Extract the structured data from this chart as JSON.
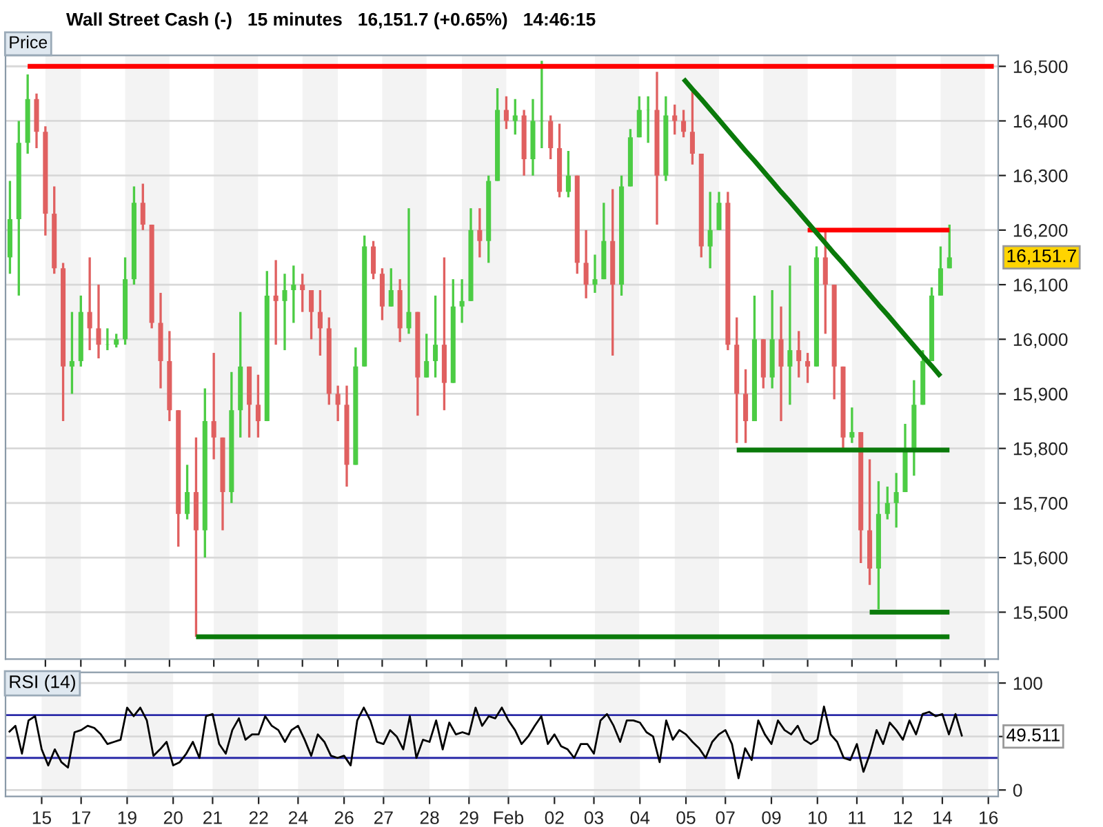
{
  "chart_data": [
    {
      "type": "candlestick",
      "title": "Wall Street Cash (-)   15 minutes   16,151.7 (+0.65%)   14:46:15",
      "subtitle": "Price",
      "annotations": [
        "16,151.7"
      ],
      "categories": [
        null,
        null,
        null,
        null,
        "15",
        null,
        null,
        null,
        "17",
        null,
        null,
        null,
        null,
        "19",
        null,
        null,
        null,
        null,
        "20",
        null,
        null,
        null,
        null,
        "21",
        null,
        null,
        null,
        null,
        "22",
        null,
        null,
        null,
        null,
        "24",
        null,
        null,
        null,
        "26",
        null,
        null,
        null,
        null,
        "27",
        null,
        null,
        null,
        null,
        "28",
        null,
        null,
        null,
        "29",
        null,
        null,
        null,
        null,
        "Feb",
        null,
        null,
        null,
        null,
        "02",
        null,
        null,
        null,
        null,
        "03",
        null,
        null,
        null,
        null,
        "04",
        null,
        null,
        null,
        "05",
        null,
        null,
        null,
        null,
        "07",
        null,
        null,
        null,
        null,
        "09",
        null,
        null,
        null,
        null,
        "10",
        null,
        null,
        null,
        null,
        "11",
        null,
        null,
        null,
        null,
        "12",
        null,
        null,
        null,
        null,
        "14",
        null,
        null,
        null,
        null,
        "16",
        null
      ],
      "ohlc": [
        [
          16150,
          16290,
          16120,
          16220
        ],
        [
          16220,
          16400,
          16080,
          16360
        ],
        [
          16360,
          16485,
          16340,
          16440
        ],
        [
          16440,
          16450,
          16350,
          16380
        ],
        [
          16380,
          16390,
          16190,
          16230
        ],
        [
          16230,
          16280,
          16120,
          16130
        ],
        [
          16130,
          16140,
          15850,
          15950
        ],
        [
          15950,
          16050,
          15900,
          15960
        ],
        [
          15960,
          16080,
          15950,
          16050
        ],
        [
          16050,
          16150,
          15980,
          16020
        ],
        [
          16020,
          16100,
          15965,
          15990
        ],
        [
          15990,
          16020,
          15980,
          15990
        ],
        [
          15990,
          16010,
          15985,
          16000
        ],
        [
          16000,
          16150,
          15990,
          16110
        ],
        [
          16110,
          16280,
          16100,
          16250
        ],
        [
          16250,
          16285,
          16200,
          16210
        ],
        [
          16210,
          16210,
          16020,
          16030
        ],
        [
          16030,
          16085,
          15910,
          15960
        ],
        [
          15960,
          16015,
          15850,
          15870
        ],
        [
          15870,
          15870,
          15620,
          15680
        ],
        [
          15680,
          15770,
          15670,
          15720
        ],
        [
          15720,
          15820,
          15455,
          15650
        ],
        [
          15650,
          15910,
          15600,
          15850
        ],
        [
          15850,
          15975,
          15780,
          15820
        ],
        [
          15820,
          15820,
          15650,
          15720
        ],
        [
          15720,
          15940,
          15700,
          15870
        ],
        [
          15870,
          16050,
          15820,
          15950
        ],
        [
          15950,
          15950,
          15820,
          15880
        ],
        [
          15880,
          15935,
          15820,
          15850
        ],
        [
          15850,
          16125,
          15850,
          16080
        ],
        [
          16080,
          16145,
          15990,
          16070
        ],
        [
          16070,
          16120,
          15980,
          16090
        ],
        [
          16090,
          16135,
          16030,
          16100
        ],
        [
          16100,
          16120,
          16050,
          16090
        ],
        [
          16090,
          16090,
          16000,
          16050
        ],
        [
          16050,
          16090,
          15970,
          16020
        ],
        [
          16020,
          16040,
          15880,
          15900
        ],
        [
          15900,
          15915,
          15850,
          15880
        ],
        [
          15880,
          15915,
          15730,
          15770
        ],
        [
          15770,
          15985,
          15770,
          15950
        ],
        [
          15950,
          16190,
          15950,
          16170
        ],
        [
          16170,
          16180,
          16110,
          16120
        ],
        [
          16120,
          16130,
          16035,
          16060
        ],
        [
          16060,
          16130,
          16060,
          16090
        ],
        [
          16090,
          16110,
          15995,
          16020
        ],
        [
          16020,
          16240,
          16010,
          16050
        ],
        [
          16050,
          16050,
          15860,
          15930
        ],
        [
          15930,
          16010,
          15930,
          15960
        ],
        [
          15960,
          16080,
          15930,
          15990
        ],
        [
          15990,
          16150,
          15870,
          15920
        ],
        [
          15920,
          16110,
          15920,
          16060
        ],
        [
          16060,
          16110,
          16030,
          16070
        ],
        [
          16070,
          16240,
          16070,
          16200
        ],
        [
          16200,
          16240,
          16150,
          16180
        ],
        [
          16180,
          16300,
          16140,
          16290
        ],
        [
          16290,
          16460,
          16290,
          16420
        ],
        [
          16420,
          16445,
          16385,
          16400
        ],
        [
          16400,
          16440,
          16375,
          16410
        ],
        [
          16410,
          16420,
          16300,
          16330
        ],
        [
          16330,
          16440,
          16300,
          16400
        ],
        [
          16400,
          16510,
          16350,
          16400
        ],
        [
          16400,
          16410,
          16330,
          16350
        ],
        [
          16350,
          16395,
          16260,
          16270
        ],
        [
          16270,
          16345,
          16260,
          16300
        ],
        [
          16300,
          16300,
          16120,
          16140
        ],
        [
          16140,
          16200,
          16075,
          16100
        ],
        [
          16100,
          16155,
          16085,
          16110
        ],
        [
          16110,
          16250,
          16110,
          16180
        ],
        [
          16180,
          16275,
          15970,
          16100
        ],
        [
          16100,
          16300,
          16080,
          16280
        ],
        [
          16280,
          16385,
          16280,
          16370
        ],
        [
          16370,
          16445,
          16370,
          16420
        ],
        [
          16420,
          16445,
          16360,
          16420
        ],
        [
          16420,
          16490,
          16210,
          16300
        ],
        [
          16300,
          16445,
          16290,
          16410
        ],
        [
          16410,
          16430,
          16375,
          16400
        ],
        [
          16400,
          16420,
          16370,
          16380
        ],
        [
          16380,
          16460,
          16320,
          16340
        ],
        [
          16340,
          16340,
          16150,
          16170
        ],
        [
          16170,
          16270,
          16130,
          16200
        ],
        [
          16200,
          16270,
          16200,
          16250
        ],
        [
          16250,
          16270,
          15980,
          15990
        ],
        [
          15990,
          16040,
          15810,
          15900
        ],
        [
          15900,
          15945,
          15810,
          15850
        ],
        [
          15850,
          16080,
          15850,
          16000
        ],
        [
          16000,
          16000,
          15910,
          15930
        ],
        [
          15930,
          16090,
          15910,
          16000
        ],
        [
          16000,
          16060,
          15850,
          15950
        ],
        [
          15950,
          16135,
          15880,
          15980
        ],
        [
          15980,
          16015,
          15930,
          15960
        ],
        [
          15960,
          15975,
          15920,
          15950
        ],
        [
          15950,
          16170,
          15950,
          16150
        ],
        [
          16150,
          16200,
          16010,
          16100
        ],
        [
          16100,
          16100,
          15890,
          15950
        ],
        [
          15950,
          15950,
          15800,
          15820
        ],
        [
          15820,
          15875,
          15810,
          15830
        ],
        [
          15830,
          15830,
          15590,
          15650
        ],
        [
          15650,
          15780,
          15550,
          15580
        ],
        [
          15580,
          15740,
          15505,
          15680
        ],
        [
          15680,
          15730,
          15670,
          15700
        ],
        [
          15700,
          15755,
          15655,
          15720
        ],
        [
          15720,
          15845,
          15720,
          15800
        ],
        [
          15800,
          15925,
          15750,
          15880
        ],
        [
          15880,
          15980,
          15880,
          15960
        ],
        [
          15960,
          16095,
          15960,
          16080
        ],
        [
          16080,
          16170,
          16080,
          16130
        ],
        [
          16130,
          16210,
          16130,
          16150
        ],
        null,
        null,
        null,
        null,
        null
      ],
      "colors": [
        "#4ccc44",
        "#4ccc44",
        "#4ccc44",
        "#e06060",
        "#e06060",
        "#e06060",
        "#e06060",
        "#4ccc44",
        "#4ccc44",
        "#e06060",
        "#e06060",
        "#4ccc44",
        "#4ccc44",
        "#4ccc44",
        "#4ccc44",
        "#e06060",
        "#e06060",
        "#e06060",
        "#e06060",
        "#e06060",
        "#4ccc44",
        "#e06060",
        "#4ccc44",
        "#e06060",
        "#e06060",
        "#4ccc44",
        "#4ccc44",
        "#e06060",
        "#e06060",
        "#4ccc44",
        "#e06060",
        "#4ccc44",
        "#4ccc44",
        "#e06060",
        "#e06060",
        "#e06060",
        "#e06060",
        "#e06060",
        "#e06060",
        "#4ccc44",
        "#4ccc44",
        "#e06060",
        "#e06060",
        "#4ccc44",
        "#e06060",
        "#4ccc44",
        "#e06060",
        "#4ccc44",
        "#4ccc44",
        "#e06060",
        "#4ccc44",
        "#4ccc44",
        "#4ccc44",
        "#e06060",
        "#4ccc44",
        "#4ccc44",
        "#e06060",
        "#4ccc44",
        "#e06060",
        "#4ccc44",
        "#4ccc44",
        "#e06060",
        "#e06060",
        "#4ccc44",
        "#e06060",
        "#e06060",
        "#4ccc44",
        "#4ccc44",
        "#e06060",
        "#4ccc44",
        "#4ccc44",
        "#4ccc44",
        "#4ccc44",
        "#e06060",
        "#4ccc44",
        "#e06060",
        "#e06060",
        "#e06060",
        "#e06060",
        "#4ccc44",
        "#4ccc44",
        "#e06060",
        "#e06060",
        "#e06060",
        "#4ccc44",
        "#e06060",
        "#4ccc44",
        "#e06060",
        "#4ccc44",
        "#e06060",
        "#e06060",
        "#4ccc44",
        "#e06060",
        "#e06060",
        "#e06060",
        "#4ccc44",
        "#e06060",
        "#e06060",
        "#4ccc44",
        "#4ccc44",
        "#4ccc44",
        "#4ccc44",
        "#4ccc44",
        "#4ccc44",
        "#4ccc44",
        "#4ccc44",
        "#4ccc44",
        null,
        null,
        null,
        null,
        null
      ],
      "series": [
        {
          "type": "line",
          "color": "#ff0000",
          "values": [
            null,
            null,
            16500,
            16500,
            16500,
            16500,
            16500,
            16500,
            16500,
            16500,
            16500,
            16500,
            16500,
            16500,
            16500,
            16500,
            16500,
            16500,
            16500,
            16500,
            16500,
            16500,
            16500,
            16500,
            16500,
            16500,
            16500,
            16500,
            16500,
            16500,
            16500,
            16500,
            16500,
            16500,
            16500,
            16500,
            16500,
            16500,
            16500,
            16500,
            16500,
            16500,
            16500,
            16500,
            16500,
            16500,
            16500,
            16500,
            16500,
            16500,
            16500,
            16500,
            16500,
            16500,
            16500,
            16500,
            16500,
            16500,
            16500,
            16500,
            16500,
            16500,
            16500,
            16500,
            16500,
            16500,
            16500,
            16500,
            16500,
            16500,
            16500,
            16500,
            16500,
            16500,
            16500,
            16500,
            16500,
            16500,
            16500,
            16500,
            16500,
            16500,
            16500,
            16500,
            16500,
            16500,
            16500,
            16500,
            16500,
            16500,
            16500,
            16500,
            16500,
            16500,
            16500,
            16500,
            16500,
            16500,
            16500,
            16500,
            16500,
            16500,
            16500,
            16500,
            16500,
            16500,
            16500,
            16500,
            16500,
            16500,
            16500,
            16500
          ]
        },
        {
          "type": "line",
          "color": "#ff0000",
          "values": [
            null,
            null,
            null,
            null,
            null,
            null,
            null,
            null,
            null,
            null,
            null,
            null,
            null,
            null,
            null,
            null,
            null,
            null,
            null,
            null,
            null,
            null,
            null,
            null,
            null,
            null,
            null,
            null,
            null,
            null,
            null,
            null,
            null,
            null,
            null,
            null,
            null,
            null,
            null,
            null,
            null,
            null,
            null,
            null,
            null,
            null,
            null,
            null,
            null,
            null,
            null,
            null,
            null,
            null,
            null,
            null,
            null,
            null,
            null,
            null,
            null,
            null,
            null,
            null,
            null,
            null,
            null,
            null,
            null,
            null,
            null,
            null,
            null,
            null,
            null,
            null,
            null,
            null,
            null,
            null,
            null,
            null,
            null,
            null,
            null,
            null,
            null,
            null,
            null,
            null,
            16200,
            16200,
            16200,
            16200,
            16200,
            16200,
            16200,
            16200,
            16200,
            16200,
            16200,
            16200,
            16200,
            16200,
            16200,
            16200,
            16200,
            null,
            null,
            null,
            null,
            null
          ]
        },
        {
          "type": "line",
          "color": "#0a7a0a",
          "values": [
            null,
            null,
            null,
            null,
            null,
            null,
            null,
            null,
            null,
            null,
            null,
            null,
            null,
            null,
            null,
            null,
            null,
            null,
            null,
            null,
            null,
            null,
            null,
            null,
            null,
            null,
            null,
            null,
            null,
            null,
            null,
            null,
            null,
            null,
            null,
            null,
            null,
            null,
            null,
            null,
            null,
            null,
            null,
            null,
            null,
            null,
            null,
            null,
            null,
            null,
            null,
            null,
            null,
            null,
            null,
            null,
            null,
            null,
            null,
            null,
            null,
            null,
            null,
            null,
            null,
            null,
            null,
            null,
            null,
            null,
            null,
            null,
            null,
            null,
            null,
            null,
            16477,
            16458,
            16440,
            16421,
            16402,
            16383,
            16364,
            16345,
            16327,
            16308,
            16289,
            16270,
            16252,
            16233,
            16214,
            16195,
            16176,
            16157,
            16139,
            16120,
            16101,
            16082,
            16063,
            16045,
            16026,
            16007,
            15988,
            15969,
            15951,
            15932,
            null,
            null,
            null,
            null,
            null,
            null
          ]
        },
        {
          "type": "line",
          "color": "#0a7a0a",
          "values": [
            null,
            null,
            null,
            null,
            null,
            null,
            null,
            null,
            null,
            null,
            null,
            null,
            null,
            null,
            null,
            null,
            null,
            null,
            null,
            null,
            null,
            null,
            null,
            null,
            null,
            null,
            null,
            null,
            null,
            null,
            null,
            null,
            null,
            null,
            null,
            null,
            null,
            null,
            null,
            null,
            null,
            null,
            null,
            null,
            null,
            null,
            null,
            null,
            null,
            null,
            null,
            null,
            null,
            null,
            null,
            null,
            null,
            null,
            null,
            null,
            null,
            null,
            null,
            null,
            null,
            null,
            null,
            null,
            null,
            null,
            null,
            null,
            null,
            null,
            null,
            null,
            null,
            null,
            null,
            null,
            null,
            null,
            15797,
            15797,
            15797,
            15797,
            15797,
            15797,
            15797,
            15797,
            15797,
            15797,
            15797,
            15797,
            15797,
            15797,
            15797,
            15797,
            15797,
            15797,
            15797,
            15797,
            15797,
            15797,
            15797,
            15797,
            15797,
            null,
            null,
            null,
            null,
            null
          ]
        },
        {
          "type": "line",
          "color": "#0a7a0a",
          "values": [
            null,
            null,
            null,
            null,
            null,
            null,
            null,
            null,
            null,
            null,
            null,
            null,
            null,
            null,
            null,
            null,
            null,
            null,
            null,
            null,
            null,
            null,
            null,
            null,
            null,
            null,
            null,
            null,
            null,
            null,
            null,
            null,
            null,
            null,
            null,
            null,
            null,
            null,
            null,
            null,
            null,
            null,
            null,
            null,
            null,
            null,
            null,
            null,
            null,
            null,
            null,
            null,
            null,
            null,
            null,
            null,
            null,
            null,
            null,
            null,
            null,
            null,
            null,
            null,
            null,
            null,
            null,
            null,
            null,
            null,
            null,
            null,
            null,
            null,
            null,
            null,
            null,
            null,
            null,
            null,
            null,
            null,
            null,
            null,
            null,
            null,
            null,
            null,
            null,
            null,
            null,
            null,
            null,
            null,
            null,
            null,
            null,
            15500,
            15500,
            15500,
            15500,
            15500,
            15500,
            15500,
            15500,
            15500,
            15500,
            null,
            null,
            null,
            null,
            null
          ]
        },
        {
          "type": "line",
          "color": "#0a7a0a",
          "values": [
            null,
            null,
            null,
            null,
            null,
            null,
            null,
            null,
            null,
            null,
            null,
            null,
            null,
            null,
            null,
            null,
            null,
            null,
            null,
            null,
            null,
            15455,
            15455,
            15455,
            15455,
            15455,
            15455,
            15455,
            15455,
            15455,
            15455,
            15455,
            15455,
            15455,
            15455,
            15455,
            15455,
            15455,
            15455,
            15455,
            15455,
            15455,
            15455,
            15455,
            15455,
            15455,
            15455,
            15455,
            15455,
            15455,
            15455,
            15455,
            15455,
            15455,
            15455,
            15455,
            15455,
            15455,
            15455,
            15455,
            15455,
            15455,
            15455,
            15455,
            15455,
            15455,
            15455,
            15455,
            15455,
            15455,
            15455,
            15455,
            15455,
            15455,
            15455,
            15455,
            15455,
            15455,
            15455,
            15455,
            15455,
            15455,
            15455,
            15455,
            15455,
            15455,
            15455,
            15455,
            15455,
            15455,
            15455,
            15455,
            15455,
            15455,
            15455,
            15455,
            15455,
            15455,
            15455,
            15455,
            15455,
            15455,
            15455,
            15455,
            15455,
            15455,
            15455,
            null,
            null,
            null,
            null,
            null
          ]
        }
      ],
      "bands": [
        {
          "axis": "x",
          "from": "15",
          "to": "17",
          "color": "#f3f3f3"
        },
        {
          "axis": "x",
          "from": "19",
          "to": "20",
          "color": "#f3f3f3"
        },
        {
          "axis": "x",
          "from": "21",
          "to": "22",
          "color": "#f3f3f3"
        },
        {
          "axis": "x",
          "from": "24",
          "to": "26",
          "color": "#f3f3f3"
        },
        {
          "axis": "x",
          "from": "27",
          "to": "28",
          "color": "#f3f3f3"
        },
        {
          "axis": "x",
          "from": "29",
          "to": "Feb",
          "color": "#f3f3f3"
        },
        {
          "axis": "x",
          "from": "03",
          "to": "04",
          "color": "#f3f3f3"
        },
        {
          "axis": "x",
          "from": "05",
          "to": "07",
          "color": "#f3f3f3"
        },
        {
          "axis": "x",
          "from": "09",
          "to": "10",
          "color": "#f3f3f3"
        },
        {
          "axis": "x",
          "from": "11",
          "to": "12",
          "color": "#f3f3f3"
        },
        {
          "axis": "x",
          "from": "14",
          "to": "16",
          "color": "#f3f3f3"
        }
      ],
      "ylim": [
        15414,
        16520
      ],
      "yticks": [
        {
          "value": 15500,
          "label": "15,500"
        },
        {
          "value": 15600,
          "label": "15,600"
        },
        {
          "value": 15700,
          "label": "15,700"
        },
        {
          "value": 15800,
          "label": "15,800"
        },
        {
          "value": 15900,
          "label": "15,900"
        },
        {
          "value": 16000,
          "label": "16,000"
        },
        {
          "value": 16100,
          "label": "16,100"
        },
        {
          "value": 16200,
          "label": "16,200"
        },
        {
          "value": 16300,
          "label": "16,300"
        },
        {
          "value": 16400,
          "label": "16,400"
        },
        {
          "value": 16500,
          "label": "16,500"
        }
      ],
      "tick_labels": "y",
      "grid": "y"
    },
    {
      "type": "line",
      "title": "RSI (14)",
      "annotations": [
        "49.511"
      ],
      "categories": [
        null,
        null,
        null,
        null,
        null,
        "15",
        null,
        null,
        null,
        null,
        null,
        "17",
        null,
        null,
        null,
        null,
        null,
        null,
        "19",
        null,
        null,
        null,
        null,
        null,
        null,
        "20",
        null,
        null,
        null,
        null,
        null,
        "21",
        null,
        null,
        null,
        null,
        null,
        null,
        "22",
        null,
        null,
        null,
        null,
        null,
        "24",
        null,
        null,
        null,
        null,
        null,
        null,
        "26",
        null,
        null,
        null,
        null,
        null,
        "27",
        null,
        null,
        null,
        null,
        null,
        null,
        "28",
        null,
        null,
        null,
        null,
        null,
        "29",
        null,
        null,
        null,
        null,
        null,
        "Feb",
        null,
        null,
        null,
        null,
        null,
        null,
        "02",
        null,
        null,
        null,
        null,
        null,
        "03",
        null,
        null,
        null,
        null,
        null,
        null,
        "04",
        null,
        null,
        null,
        null,
        null,
        null,
        "05",
        null,
        null,
        null,
        null,
        null,
        "07",
        null,
        null,
        null,
        null,
        null,
        null,
        "09",
        null,
        null,
        null,
        null,
        null,
        null,
        "10",
        null,
        null,
        null,
        null,
        null,
        "11",
        null,
        null,
        null,
        null,
        null,
        null,
        "12",
        null,
        null,
        null,
        null,
        null,
        "14",
        null,
        null,
        null,
        null,
        null,
        null,
        "16",
        null
      ],
      "series": [
        {
          "color": "#000000",
          "values": [
            54,
            60,
            34,
            65,
            69,
            38,
            23,
            38,
            26,
            21,
            54,
            56,
            60,
            58,
            52,
            43,
            45,
            47,
            77,
            69,
            77,
            65,
            32,
            38,
            45,
            23,
            26,
            34,
            45,
            30,
            69,
            71,
            43,
            34,
            56,
            67,
            47,
            52,
            52,
            69,
            60,
            56,
            45,
            56,
            60,
            47,
            32,
            52,
            45,
            32,
            30,
            32,
            23,
            65,
            77,
            65,
            45,
            43,
            56,
            50,
            38,
            69,
            30,
            47,
            45,
            65,
            38,
            63,
            52,
            54,
            52,
            77,
            60,
            69,
            67,
            77,
            65,
            56,
            43,
            50,
            60,
            69,
            43,
            52,
            41,
            38,
            30,
            43,
            43,
            34,
            65,
            71,
            60,
            45,
            65,
            65,
            63,
            54,
            50,
            26,
            65,
            47,
            56,
            52,
            45,
            39,
            30,
            45,
            52,
            56,
            43,
            11,
            39,
            28,
            65,
            52,
            43,
            65,
            56,
            52,
            60,
            47,
            43,
            47,
            78,
            52,
            45,
            30,
            28,
            43,
            17,
            34,
            56,
            43,
            63,
            56,
            47,
            65,
            52,
            71,
            73,
            69,
            71,
            52,
            71,
            50,
            null,
            null,
            null,
            null,
            null
          ]
        }
      ],
      "ref_lines": [
        {
          "axis": "y",
          "value": 70,
          "color": "#2a2aa8"
        },
        {
          "axis": "y",
          "value": 30,
          "color": "#2a2aa8"
        }
      ],
      "bands": [
        {
          "axis": "x",
          "from": "15",
          "to": "17",
          "color": "#f3f3f3"
        },
        {
          "axis": "x",
          "from": "19",
          "to": "20",
          "color": "#f3f3f3"
        },
        {
          "axis": "x",
          "from": "21",
          "to": "22",
          "color": "#f3f3f3"
        },
        {
          "axis": "x",
          "from": "24",
          "to": "26",
          "color": "#f3f3f3"
        },
        {
          "axis": "x",
          "from": "27",
          "to": "28",
          "color": "#f3f3f3"
        },
        {
          "axis": "x",
          "from": "29",
          "to": "Feb",
          "color": "#f3f3f3"
        },
        {
          "axis": "x",
          "from": "03",
          "to": "04",
          "color": "#f3f3f3"
        },
        {
          "axis": "x",
          "from": "05",
          "to": "07",
          "color": "#f3f3f3"
        },
        {
          "axis": "x",
          "from": "09",
          "to": "10",
          "color": "#f3f3f3"
        },
        {
          "axis": "x",
          "from": "11",
          "to": "12",
          "color": "#f3f3f3"
        },
        {
          "axis": "x",
          "from": "14",
          "to": "16",
          "color": "#f3f3f3"
        }
      ],
      "ylim": [
        -6,
        110
      ],
      "yticks": [
        0,
        {
          "value": 50,
          "label": null
        },
        100
      ],
      "grid": "y"
    }
  ]
}
